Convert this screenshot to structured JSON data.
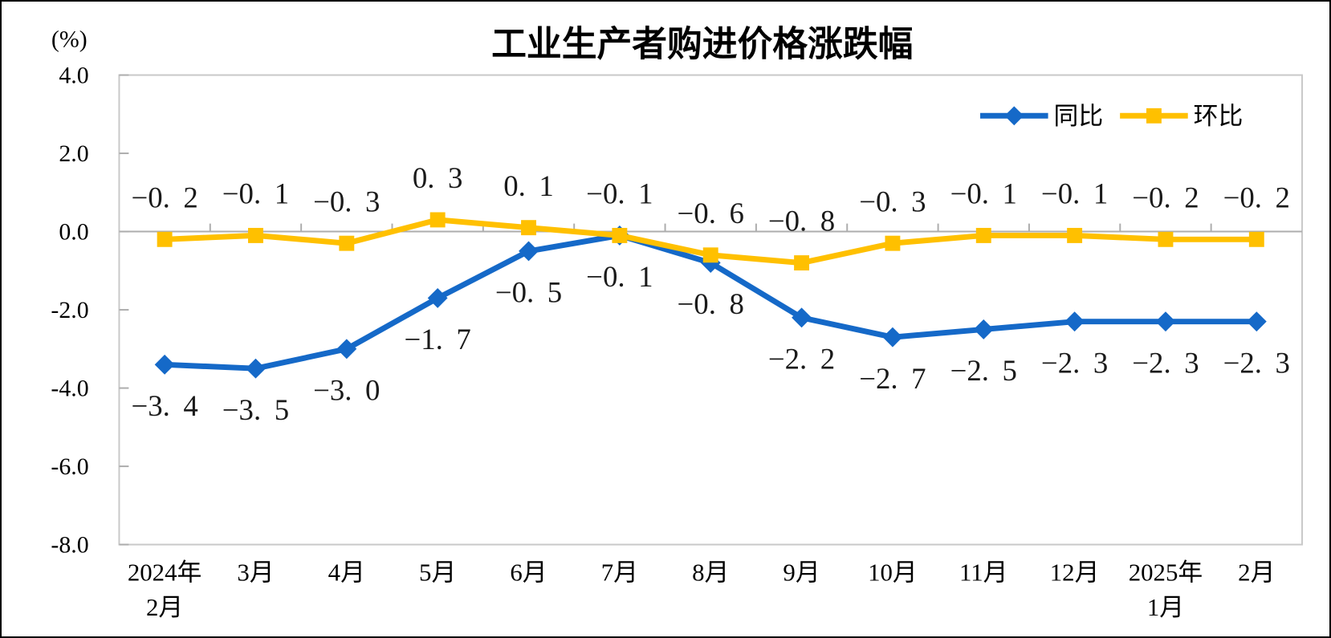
{
  "frame": {
    "background": "#ffffff",
    "border_color": "#000000"
  },
  "chart_data": {
    "type": "line",
    "title": "工业生产者购进价格涨跌幅",
    "unit_label": "(%)",
    "categories": [
      "2024年\n2月",
      "3月",
      "4月",
      "5月",
      "6月",
      "7月",
      "8月",
      "9月",
      "10月",
      "11月",
      "12月",
      "2025年\n1月",
      "2月"
    ],
    "series": [
      {
        "name": "同比",
        "marker": "diamond",
        "color": "#1569C8",
        "values": [
          -3.4,
          -3.5,
          -3.0,
          -1.7,
          -0.5,
          -0.1,
          -0.8,
          -2.2,
          -2.7,
          -2.5,
          -2.3,
          -2.3,
          -2.3
        ],
        "label_position": "below"
      },
      {
        "name": "环比",
        "marker": "square",
        "color": "#FFC000",
        "values": [
          -0.2,
          -0.1,
          -0.3,
          0.3,
          0.1,
          -0.1,
          -0.6,
          -0.8,
          -0.3,
          -0.1,
          -0.1,
          -0.2,
          -0.2
        ],
        "label_position": "above"
      }
    ],
    "ylim": [
      -8.0,
      4.0
    ],
    "yticks": [
      4.0,
      2.0,
      0.0,
      -2.0,
      -4.0,
      -6.0,
      -8.0
    ],
    "grid": "zero-line-only",
    "legend_position": "top-right-inside",
    "axis_color": "#ADADAD",
    "border_color": "#C9C9C9",
    "label_color": "#1a1a1a"
  }
}
